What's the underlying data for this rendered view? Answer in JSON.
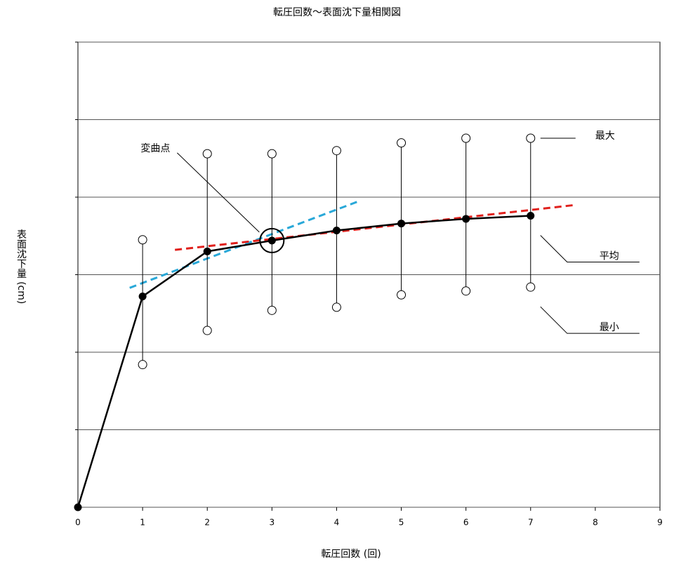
{
  "chart_data": {
    "type": "line",
    "title": "転圧回数～表面沈下量相関図",
    "x_label": "転圧回数 (回)",
    "y_label": "表面沈下量 (cm)",
    "x": [
      0,
      1,
      2,
      3,
      4,
      5,
      6,
      7
    ],
    "xlim": [
      0,
      9
    ],
    "xticks": [
      0,
      1,
      2,
      3,
      4,
      5,
      6,
      7,
      8,
      9
    ],
    "ylim": [
      0,
      6
    ],
    "yticks": [
      0,
      1,
      2,
      3,
      4,
      5,
      6
    ],
    "y_tick_labels": false,
    "grid": true,
    "series": [
      {
        "name": "平均",
        "color": "#000000",
        "values": [
          0,
          2.72,
          3.3,
          3.44,
          3.57,
          3.66,
          3.72,
          3.76
        ]
      },
      {
        "name": "最大",
        "color": "#000000",
        "values": [
          null,
          3.45,
          4.56,
          4.56,
          4.6,
          4.7,
          4.76,
          4.76
        ]
      },
      {
        "name": "最小",
        "color": "#000000",
        "values": [
          null,
          1.84,
          2.28,
          2.54,
          2.58,
          2.74,
          2.79,
          2.84
        ]
      }
    ],
    "trend_lines": [
      {
        "color": "#29a8d8",
        "x": [
          0.8,
          4.35
        ],
        "values": [
          2.83,
          3.95
        ]
      },
      {
        "color": "#e0201c",
        "x": [
          1.5,
          7.7
        ],
        "values": [
          3.32,
          3.9
        ]
      }
    ],
    "annotations": [
      {
        "text": "変曲点",
        "x": 3,
        "y": 3.44
      }
    ]
  }
}
